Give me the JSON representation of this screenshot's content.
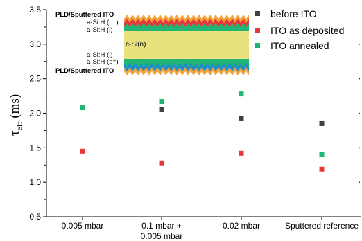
{
  "chart_data": {
    "type": "scatter",
    "categories": [
      "0.005 mbar",
      "0.1 mbar +\n0.005 mbar",
      "0.02 mbar",
      "Sputtered reference"
    ],
    "series": [
      {
        "name": "before ITO",
        "color": "#404040",
        "values": [
          null,
          2.05,
          1.92,
          1.85
        ]
      },
      {
        "name": "ITO as deposited",
        "color": "#e8373a",
        "values": [
          1.45,
          1.28,
          1.42,
          1.19
        ]
      },
      {
        "name": "ITO annealed",
        "color": "#22b473",
        "values": [
          2.08,
          2.17,
          2.28,
          1.4
        ]
      }
    ],
    "ylabel_main": "τ",
    "ylabel_sub": "eff",
    "ylabel_unit": " (ms)",
    "ylim": [
      0.5,
      3.5
    ],
    "yticks": [
      "0.5",
      "1.0",
      "1.5",
      "2.0",
      "2.5",
      "3.0",
      "3.5"
    ],
    "legend_position": "top-right",
    "inset": {
      "top_label": "PLD/Sputtered ITO",
      "n_layer": "a-Si:H (n⁻)",
      "i_top": "a-Si:H   (i)",
      "core": "c-Si(n)",
      "i_bottom": "a-Si:H  (i)",
      "p_layer": "a-Si:H (p⁺)",
      "bottom_label": "PLD/Sputtered ITO"
    }
  }
}
